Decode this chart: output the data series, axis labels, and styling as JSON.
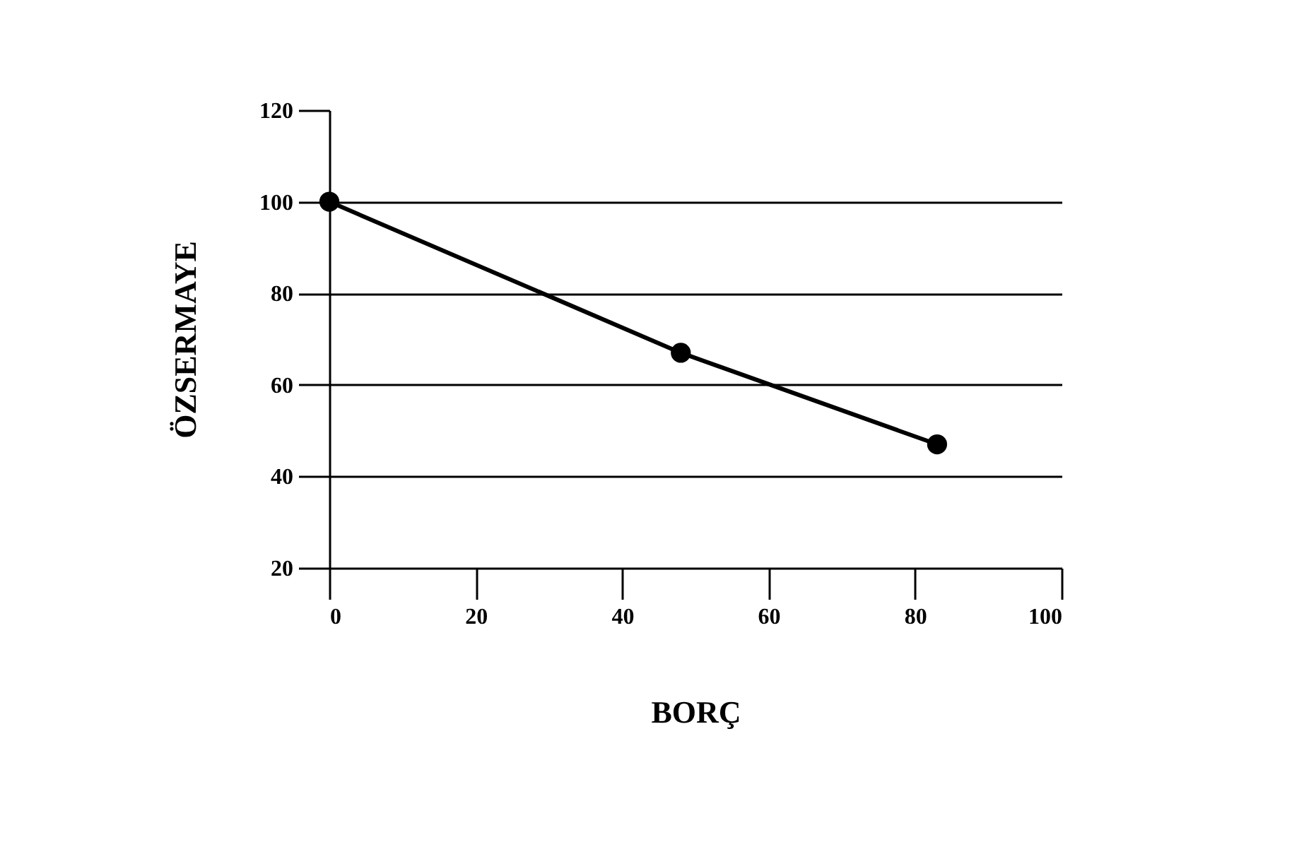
{
  "chart_data": {
    "type": "line",
    "xlabel": "BORÇ",
    "ylabel": "ÖZSERMAYE",
    "x": [
      0,
      48,
      83
    ],
    "series": [
      {
        "color": "#000000",
        "values": [
          100,
          67,
          47
        ]
      }
    ],
    "xlim": [
      0,
      100
    ],
    "xticks": [
      0,
      20,
      40,
      60,
      80,
      100
    ],
    "ylim": [
      20,
      120
    ],
    "yticks": [
      20,
      40,
      60,
      80,
      100,
      120
    ],
    "grid": "y",
    "marker": "circle",
    "line_style": "solid",
    "legend": false
  }
}
